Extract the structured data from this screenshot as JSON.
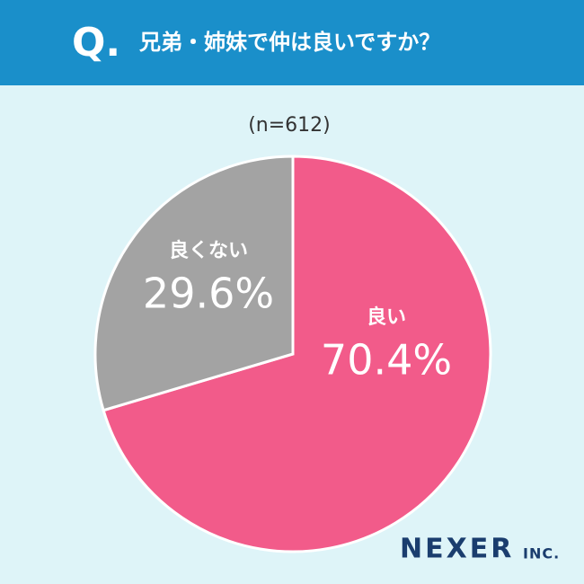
{
  "header": {
    "mark": "Q."
  },
  "chart_data": {
    "type": "pie",
    "title": "兄弟・姉妹で仲は良いですか？",
    "subtitle": "(n=612)",
    "categories": [
      "良い",
      "良くない"
    ],
    "values": [
      70.4,
      29.6
    ],
    "value_labels": [
      "70.4%",
      "29.6%"
    ],
    "colors": [
      "#f25b8a",
      "#a3a3a3"
    ]
  },
  "footer": {
    "logo": "NEXER",
    "logo_suffix": "INC."
  }
}
